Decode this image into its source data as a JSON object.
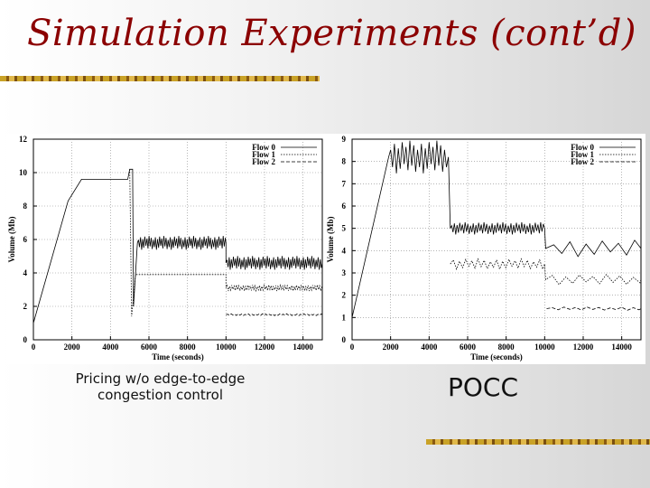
{
  "slide": {
    "title": "Simulation Experiments (cont’d)",
    "caption_left": "Pricing w/o edge-to-edge congestion control",
    "caption_right": "POCC"
  },
  "chart_data": [
    {
      "type": "line",
      "xlabel": "Time (seconds)",
      "ylabel": "Volume (Mb)",
      "xlim": [
        0,
        15000
      ],
      "ylim": [
        0,
        12
      ],
      "xticks": [
        0,
        2000,
        4000,
        6000,
        8000,
        10000,
        12000,
        14000
      ],
      "yticks": [
        0,
        2,
        4,
        6,
        8,
        10,
        12
      ],
      "grid": true,
      "legend_position": "top-right",
      "series": [
        {
          "name": "Flow 0",
          "style": "solid",
          "points": [
            [
              0,
              1
            ],
            [
              1800,
              8.3
            ],
            [
              2500,
              9.6
            ],
            [
              4900,
              9.6
            ],
            [
              5000,
              10.2
            ],
            [
              5150,
              10.2
            ],
            [
              5200,
              2
            ],
            [
              5400,
              5.8
            ],
            [
              10000,
              5.8
            ],
            [
              10000,
              4.6
            ],
            [
              15000,
              4.6
            ]
          ],
          "noise": [
            [
              2600,
              4900,
              0.7,
              170
            ],
            [
              5400,
              10000,
              0.45,
              55
            ],
            [
              10000,
              15000,
              0.45,
              55
            ]
          ]
        },
        {
          "name": "Flow 1",
          "style": "dotted",
          "points": [
            [
              5000,
              10.2
            ],
            [
              5100,
              1.4
            ],
            [
              5300,
              3.9
            ],
            [
              10000,
              3.9
            ],
            [
              10000,
              3.1
            ],
            [
              15000,
              3.1
            ]
          ],
          "noise": [
            [
              5400,
              10000,
              0.22,
              60
            ],
            [
              10000,
              15000,
              0.2,
              60
            ]
          ]
        },
        {
          "name": "Flow 2",
          "style": "dashed",
          "points": [
            [
              10000,
              1.5
            ],
            [
              15000,
              1.5
            ]
          ],
          "noise": [
            [
              10000,
              15000,
              0.06,
              90
            ]
          ]
        }
      ]
    },
    {
      "type": "line",
      "xlabel": "Time (seconds)",
      "ylabel": "Volume (Mb)",
      "xlim": [
        0,
        15000
      ],
      "ylim": [
        0,
        9
      ],
      "xticks": [
        0,
        2000,
        4000,
        6000,
        8000,
        10000,
        12000,
        14000
      ],
      "yticks": [
        0,
        1,
        2,
        3,
        4,
        5,
        6,
        7,
        8,
        9
      ],
      "grid": true,
      "legend_position": "top-right",
      "series": [
        {
          "name": "Flow 0",
          "style": "solid",
          "points": [
            [
              0,
              1
            ],
            [
              1900,
              8.2
            ],
            [
              5000,
              8.2
            ],
            [
              5100,
              5
            ],
            [
              10000,
              5
            ],
            [
              10050,
              4.1
            ],
            [
              15000,
              4.1
            ]
          ],
          "noise": [
            [
              1900,
              5000,
              0.8,
              100
            ],
            [
              5100,
              10000,
              0.3,
              70
            ],
            [
              10050,
              15000,
              0.4,
              420
            ]
          ]
        },
        {
          "name": "Flow 1",
          "style": "dotted",
          "points": [
            [
              5100,
              3.4
            ],
            [
              10000,
              3.4
            ],
            [
              10050,
              2.7
            ],
            [
              15000,
              2.7
            ]
          ],
          "noise": [
            [
              5100,
              10000,
              0.25,
              160
            ],
            [
              10050,
              15000,
              0.25,
              350
            ]
          ]
        },
        {
          "name": "Flow 2",
          "style": "dashed",
          "points": [
            [
              10100,
              1.4
            ],
            [
              15000,
              1.4
            ]
          ],
          "noise": [
            [
              10100,
              15000,
              0.08,
              300
            ]
          ]
        }
      ]
    }
  ]
}
